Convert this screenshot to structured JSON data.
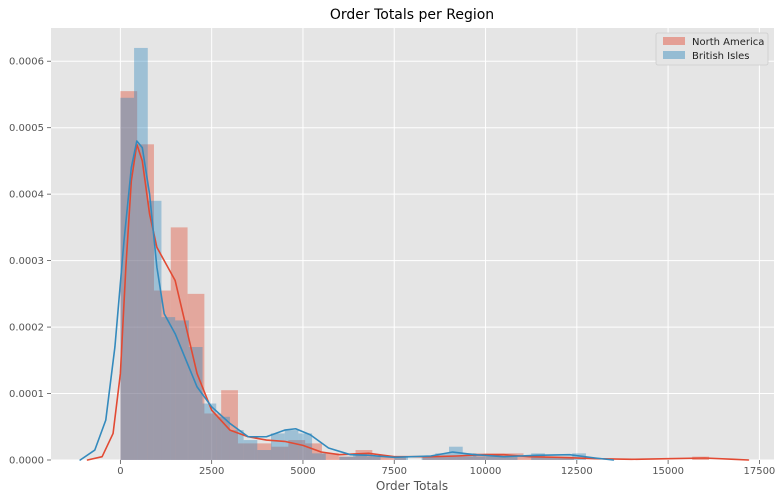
{
  "chart_data": {
    "type": "histogram",
    "title": "Order Totals per Region",
    "xlabel": "Order Totals",
    "ylabel": "",
    "xlim": [
      -1900,
      17900
    ],
    "ylim": [
      0,
      0.00065
    ],
    "x_ticks": [
      0,
      2500,
      5000,
      7500,
      10000,
      12500,
      15000,
      17500
    ],
    "x_tick_labels": [
      "0",
      "2500",
      "5000",
      "7500",
      "10000",
      "12500",
      "15000",
      "17500"
    ],
    "y_ticks": [
      0,
      0.0001,
      0.0002,
      0.0003,
      0.0004,
      0.0005,
      0.0006
    ],
    "y_tick_labels": [
      "0.0000",
      "0.0001",
      "0.0002",
      "0.0003",
      "0.0004",
      "0.0005",
      "0.0006"
    ],
    "grid": true,
    "legend_position": "top-right",
    "series": [
      {
        "name": "North America",
        "color": "#E24A33",
        "bin_width": 460,
        "bins": [
          [
            0,
            0.000555
          ],
          [
            460,
            0.000475
          ],
          [
            920,
            0.000255
          ],
          [
            1380,
            0.00035
          ],
          [
            1840,
            0.00025
          ],
          [
            2300,
            7e-05
          ],
          [
            2760,
            0.000105
          ],
          [
            3220,
            2.5e-05
          ],
          [
            3680,
            2.5e-05
          ],
          [
            4140,
            2e-05
          ],
          [
            4600,
            3e-05
          ],
          [
            5060,
            2.5e-05
          ],
          [
            5520,
            1e-05
          ],
          [
            5980,
            5e-06
          ],
          [
            6440,
            1.5e-05
          ],
          [
            6900,
            5e-06
          ],
          [
            7360,
            5e-06
          ],
          [
            7820,
            0.0
          ],
          [
            8280,
            5e-06
          ],
          [
            8740,
            5e-06
          ],
          [
            9200,
            5e-06
          ],
          [
            9660,
            1e-05
          ],
          [
            10120,
            1e-05
          ],
          [
            10580,
            1e-05
          ],
          [
            11040,
            5e-06
          ],
          [
            11500,
            5e-06
          ],
          [
            11960,
            5e-06
          ],
          [
            12420,
            0.0
          ],
          [
            15660,
            5e-06
          ]
        ],
        "kde": [
          [
            -900,
            0
          ],
          [
            -500,
            5e-06
          ],
          [
            -200,
            4e-05
          ],
          [
            0,
            0.00013
          ],
          [
            150,
            0.00029
          ],
          [
            300,
            0.00042
          ],
          [
            450,
            0.000475
          ],
          [
            600,
            0.00045
          ],
          [
            800,
            0.00037
          ],
          [
            1000,
            0.00032
          ],
          [
            1200,
            0.0003
          ],
          [
            1500,
            0.00027
          ],
          [
            1800,
            0.0002
          ],
          [
            2100,
            0.00013
          ],
          [
            2500,
            7.5e-05
          ],
          [
            3000,
            4.5e-05
          ],
          [
            3500,
            3.5e-05
          ],
          [
            4000,
            3e-05
          ],
          [
            4500,
            2.8e-05
          ],
          [
            5000,
            2.2e-05
          ],
          [
            5500,
            1.2e-05
          ],
          [
            6000,
            8e-06
          ],
          [
            6800,
            1e-05
          ],
          [
            7500,
            5e-06
          ],
          [
            8500,
            5e-06
          ],
          [
            9200,
            6e-06
          ],
          [
            10000,
            8e-06
          ],
          [
            10500,
            8e-06
          ],
          [
            11200,
            5e-06
          ],
          [
            12000,
            4e-06
          ],
          [
            13000,
            2e-06
          ],
          [
            14000,
            1e-06
          ],
          [
            15000,
            2e-06
          ],
          [
            16000,
            3e-06
          ],
          [
            16800,
            1e-06
          ],
          [
            17200,
            0
          ]
        ]
      },
      {
        "name": "British Isles",
        "color": "#348ABD",
        "bin_width": 375,
        "bins": [
          [
            0,
            0.000545
          ],
          [
            375,
            0.00062
          ],
          [
            750,
            0.00039
          ],
          [
            1125,
            0.000215
          ],
          [
            1500,
            0.00021
          ],
          [
            1875,
            0.00017
          ],
          [
            2250,
            8.5e-05
          ],
          [
            2625,
            6.5e-05
          ],
          [
            3000,
            4.5e-05
          ],
          [
            3375,
            3e-05
          ],
          [
            3750,
            1.5e-05
          ],
          [
            4125,
            4e-05
          ],
          [
            4500,
            4.5e-05
          ],
          [
            4875,
            4e-05
          ],
          [
            5250,
            1e-05
          ],
          [
            5625,
            0.0
          ],
          [
            6000,
            5e-06
          ],
          [
            6375,
            1e-05
          ],
          [
            6750,
            5e-06
          ],
          [
            7125,
            0.0
          ],
          [
            7500,
            5e-06
          ],
          [
            7875,
            0.0
          ],
          [
            8250,
            5e-06
          ],
          [
            8625,
            1e-05
          ],
          [
            9000,
            2e-05
          ],
          [
            9375,
            1e-05
          ],
          [
            9750,
            5e-06
          ],
          [
            10125,
            5e-06
          ],
          [
            10500,
            5e-06
          ],
          [
            10875,
            0.0
          ],
          [
            11250,
            1e-05
          ],
          [
            11625,
            5e-06
          ],
          [
            12000,
            5e-06
          ],
          [
            12375,
            1e-05
          ]
        ],
        "kde": [
          [
            -1100,
            0
          ],
          [
            -700,
            1.5e-05
          ],
          [
            -400,
            6e-05
          ],
          [
            -150,
            0.00017
          ],
          [
            100,
            0.00033
          ],
          [
            300,
            0.00044
          ],
          [
            450,
            0.00048
          ],
          [
            600,
            0.00047
          ],
          [
            800,
            0.0004
          ],
          [
            1000,
            0.00029
          ],
          [
            1200,
            0.00022
          ],
          [
            1500,
            0.00019
          ],
          [
            1800,
            0.00015
          ],
          [
            2100,
            0.00011
          ],
          [
            2500,
            8e-05
          ],
          [
            3000,
            5.5e-05
          ],
          [
            3500,
            3.5e-05
          ],
          [
            4000,
            3.5e-05
          ],
          [
            4500,
            4.5e-05
          ],
          [
            4800,
            4.7e-05
          ],
          [
            5200,
            3.8e-05
          ],
          [
            5700,
            1.8e-05
          ],
          [
            6300,
            8e-06
          ],
          [
            6800,
            7e-06
          ],
          [
            7500,
            4e-06
          ],
          [
            8500,
            6e-06
          ],
          [
            9100,
            1.2e-05
          ],
          [
            9700,
            8e-06
          ],
          [
            10500,
            5e-06
          ],
          [
            11400,
            7e-06
          ],
          [
            12300,
            8e-06
          ],
          [
            13000,
            3e-06
          ],
          [
            13500,
            0
          ]
        ]
      }
    ]
  }
}
